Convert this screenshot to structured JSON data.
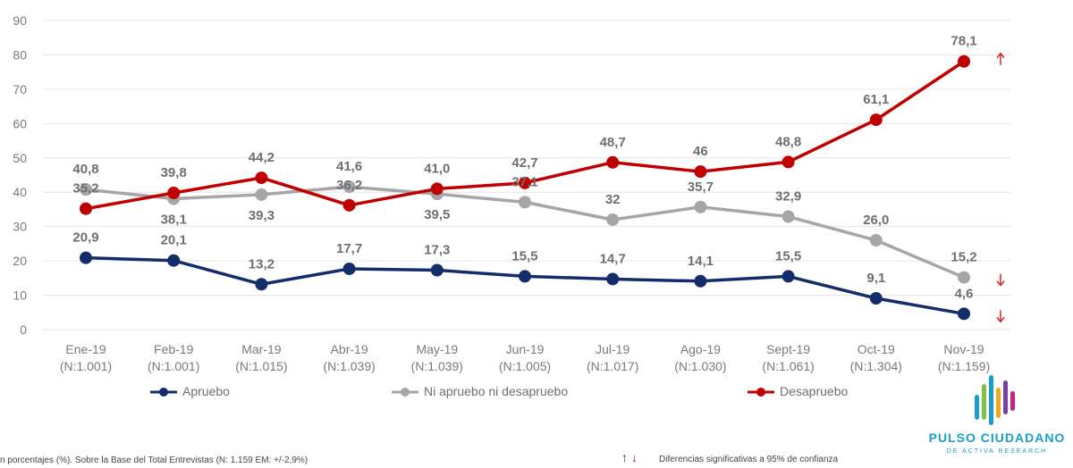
{
  "chart_data": {
    "type": "line",
    "ylim": [
      0,
      90
    ],
    "yticks": [
      "0",
      "10",
      "20",
      "30",
      "40",
      "50",
      "60",
      "70",
      "80",
      "90"
    ],
    "categories": [
      {
        "month": "Ene-19",
        "n": "(N:1.001)"
      },
      {
        "month": "Feb-19",
        "n": "(N:1.001)"
      },
      {
        "month": "Mar-19",
        "n": "(N:1.015)"
      },
      {
        "month": "Abr-19",
        "n": "(N:1.039)"
      },
      {
        "month": "May-19",
        "n": "(N:1.039)"
      },
      {
        "month": "Jun-19",
        "n": "(N:1.005)"
      },
      {
        "month": "Jul-19",
        "n": "(N:1.017)"
      },
      {
        "month": "Ago-19",
        "n": "(N:1.030)"
      },
      {
        "month": "Sept-19",
        "n": "(N:1.061)"
      },
      {
        "month": "Oct-19",
        "n": "(N:1.304)"
      },
      {
        "month": "Nov-19",
        "n": "(N:1.159)"
      }
    ],
    "series": [
      {
        "name": "Apruebo",
        "color": "#132d6b",
        "values": [
          20.9,
          20.1,
          13.2,
          17.7,
          17.3,
          15.5,
          14.7,
          14.1,
          15.5,
          9.1,
          4.6
        ],
        "labels": [
          "20,9",
          "20,1",
          "13,2",
          "17,7",
          "17,3",
          "15,5",
          "14,7",
          "14,1",
          "15,5",
          "9,1",
          "4,6"
        ]
      },
      {
        "name": "Ni apruebo ni desapruebo",
        "color": "#a6a6a6",
        "values": [
          40.8,
          38.1,
          39.3,
          41.6,
          39.5,
          37.1,
          32,
          35.7,
          32.9,
          26.0,
          15.2
        ],
        "labels": [
          "40,8",
          "38,1",
          "39,3",
          "41,6",
          "39,5",
          "37,1",
          "32",
          "35,7",
          "32,9",
          "26,0",
          "15,2"
        ]
      },
      {
        "name": "Desapruebo",
        "color": "#c00000",
        "values": [
          35.2,
          39.8,
          44.2,
          36.2,
          41.0,
          42.7,
          48.7,
          46,
          48.8,
          61.1,
          78.1
        ],
        "labels": [
          "35,2",
          "39,8",
          "44,2",
          "36,2",
          "41,0",
          "42,7",
          "48,7",
          "46",
          "48,8",
          "61,1",
          "78,1"
        ]
      }
    ],
    "significance_arrows": [
      {
        "series": "Desapruebo",
        "direction": "up"
      },
      {
        "series": "Ni apruebo ni desapruebo",
        "direction": "down"
      },
      {
        "series": "Apruebo",
        "direction": "down"
      }
    ],
    "up_color": "#1f2fa8",
    "down_color": "#d01919",
    "grid": true,
    "legend_position": "bottom"
  },
  "footnote": "n porcentajes (%). Sobre la Base del Total Entrevistas (N: 1.159 EM: +/-2,9%)",
  "significance_note": "Diferencias  significativas a 95% de confianza",
  "logo": {
    "name": "PULSO CIUDADANO",
    "subtitle": "DE ACTIVA RESEARCH",
    "bar_colors": [
      "#1aa0c8",
      "#7cc243",
      "#1aa0c8",
      "#f2a81d",
      "#7a3fa0",
      "#c6227f"
    ]
  }
}
